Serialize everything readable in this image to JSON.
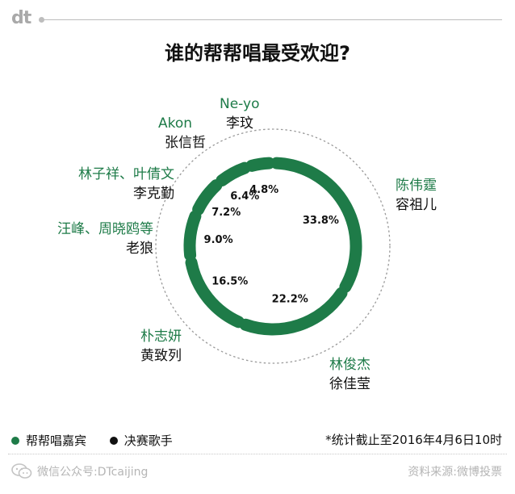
{
  "header": {
    "logo": "dt"
  },
  "chart_data": {
    "type": "pie",
    "title": "谁的帮帮唱最受欢迎?",
    "slices": [
      {
        "guest": "陈伟霆",
        "singer": "容祖儿",
        "value": 33.8,
        "label": "33.8%"
      },
      {
        "guest": "林俊杰",
        "singer": "徐佳莹",
        "value": 22.2,
        "label": "22.2%"
      },
      {
        "guest": "朴志妍",
        "singer": "黄致列",
        "value": 16.5,
        "label": "16.5%"
      },
      {
        "guest": "汪峰、周晓鸥等",
        "singer": "老狼",
        "value": 9.0,
        "label": "9.0%"
      },
      {
        "guest": "林子祥、叶倩文",
        "singer": "李克勤",
        "value": 7.2,
        "label": "7.2%"
      },
      {
        "guest": "Akon",
        "singer": "张信哲",
        "value": 6.4,
        "label": "6.4%"
      },
      {
        "guest": "Ne-yo",
        "singer": "李玟",
        "value": 4.8,
        "label": "4.8%"
      }
    ],
    "colors": {
      "ring": "#1e7b48",
      "guest_text": "#1e7b48",
      "singer_text": "#111111"
    }
  },
  "legend": {
    "guest_label": "帮帮唱嘉宾",
    "singer_label": "决赛歌手",
    "guest_color": "#1e7b48",
    "singer_color": "#111111"
  },
  "note": "*统计截止至2016年4月6日10时",
  "footer": {
    "left": "微信公众号:DTcaijing",
    "right": "资料来源:微博投票",
    "icon": "wechat-icon"
  }
}
